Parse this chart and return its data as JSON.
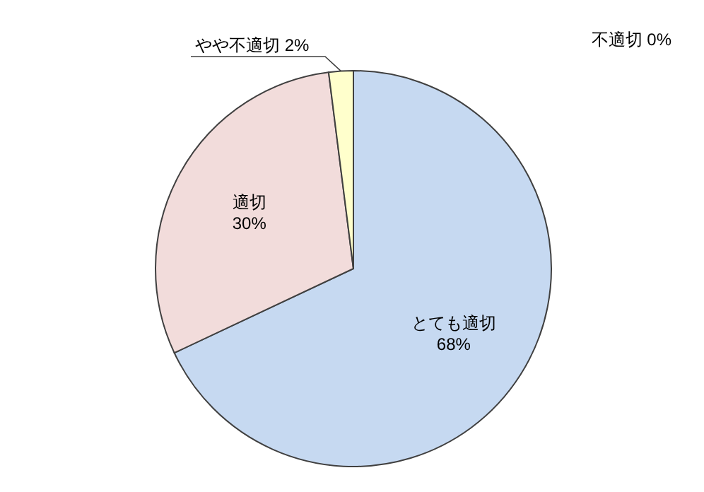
{
  "chart_data": {
    "type": "pie",
    "categories": [
      "とても適切",
      "適切",
      "やや不適切",
      "不適切"
    ],
    "values": [
      68,
      30,
      2,
      0
    ],
    "value_labels": [
      "68%",
      "30%",
      "2%",
      "0%"
    ],
    "colors": [
      "#c6d9f1",
      "#f2dcdb",
      "#ffffcc",
      "#ccffcc"
    ]
  }
}
